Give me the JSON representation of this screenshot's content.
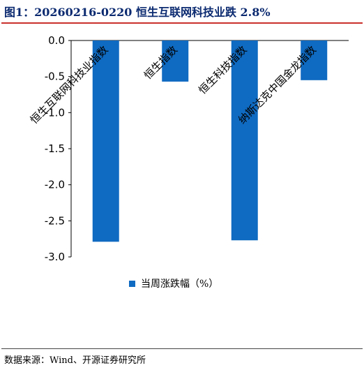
{
  "header": {
    "title": "图1：20260216-0220 恒生互联网科技业跌 2.8%"
  },
  "footer": {
    "source": "数据来源：Wind、开源证券研究所"
  },
  "legend": {
    "label": "当周涨跌幅（%）",
    "color": "#0f6ac1"
  },
  "chart_data": {
    "type": "bar",
    "categories": [
      "恒生互联网科技业指数",
      "恒生指数",
      "恒生科技指数",
      "纳斯达克中国金龙指数"
    ],
    "series": [
      {
        "name": "当周涨跌幅（%）",
        "values": [
          -2.79,
          -0.57,
          -2.77,
          -0.55
        ],
        "color": "#0f6ac1"
      }
    ],
    "ylim": [
      -3.0,
      0.0
    ],
    "yticks": [
      "0.0",
      "-0.5",
      "-1.0",
      "-1.5",
      "-2.0",
      "-2.5",
      "-3.0"
    ],
    "grid": false,
    "legend_position": "bottom"
  }
}
